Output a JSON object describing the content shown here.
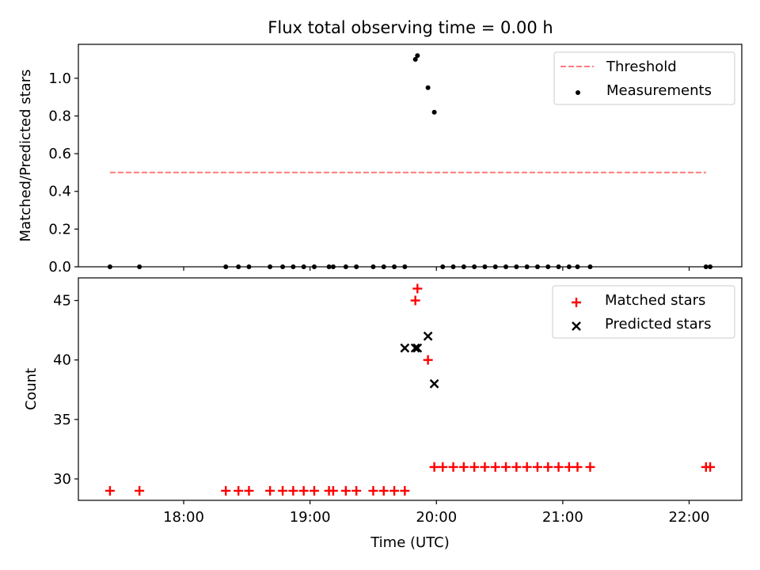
{
  "title": "Flux total observing time = 0.00 h",
  "colors": {
    "threshold": "#ff7b7b",
    "measurements": "#000000",
    "matched": "#ff0000",
    "predicted": "#000000",
    "axes": "#000000",
    "background": "#ffffff"
  },
  "chart_data": [
    {
      "type": "scatter",
      "ylabel": "Matched/Predicted stars",
      "xlabel": "",
      "xlim": [
        "17:10",
        "22:25"
      ],
      "ylim": [
        0,
        1.18
      ],
      "yticks": [
        0.0,
        0.2,
        0.4,
        0.6,
        0.8,
        1.0
      ],
      "ytick_labels": [
        "0.0",
        "0.2",
        "0.4",
        "0.6",
        "0.8",
        "1.0"
      ],
      "legend": {
        "placement": "top-right",
        "entries": [
          {
            "label": "Threshold",
            "marker": "dashed-line"
          },
          {
            "label": "Measurements",
            "marker": "dot"
          }
        ]
      },
      "threshold_line": {
        "y": 0.5,
        "x_start": "17:25",
        "x_end": "22:08"
      },
      "series": [
        {
          "name": "Measurements",
          "x": [
            "17:25",
            "17:39",
            "18:20",
            "18:26",
            "18:31",
            "18:41",
            "18:47",
            "18:52",
            "18:57",
            "19:02",
            "19:09",
            "19:11",
            "19:17",
            "19:22",
            "19:30",
            "19:35",
            "19:40",
            "19:45",
            "19:50",
            "19:51",
            "19:56",
            "19:59",
            "20:03",
            "20:08",
            "20:13",
            "20:18",
            "20:23",
            "20:28",
            "20:33",
            "20:38",
            "20:43",
            "20:48",
            "20:53",
            "20:58",
            "21:03",
            "21:07",
            "21:13",
            "22:08",
            "22:10"
          ],
          "y": [
            0,
            0,
            0,
            0,
            0,
            0,
            0,
            0,
            0,
            0,
            0,
            0,
            0,
            0,
            0,
            0,
            0,
            0,
            1.1,
            1.12,
            0.95,
            0.82,
            0,
            0,
            0,
            0,
            0,
            0,
            0,
            0,
            0,
            0,
            0,
            0,
            0,
            0,
            0,
            0,
            0
          ]
        }
      ]
    },
    {
      "type": "scatter",
      "ylabel": "Count",
      "xlabel": "Time (UTC)",
      "xlim": [
        "17:10",
        "22:25"
      ],
      "ylim": [
        28.2,
        46.9
      ],
      "yticks": [
        30,
        35,
        40,
        45
      ],
      "ytick_labels": [
        "30",
        "35",
        "40",
        "45"
      ],
      "xticks": [
        "18:00",
        "19:00",
        "20:00",
        "21:00",
        "22:00"
      ],
      "xtick_labels": [
        "18:00",
        "19:00",
        "20:00",
        "21:00",
        "22:00"
      ],
      "legend": {
        "placement": "top-right",
        "entries": [
          {
            "label": "Matched stars",
            "marker": "plus"
          },
          {
            "label": "Predicted stars",
            "marker": "x"
          }
        ]
      },
      "series": [
        {
          "name": "Matched stars",
          "x": [
            "17:25",
            "17:39",
            "18:20",
            "18:26",
            "18:31",
            "18:41",
            "18:47",
            "18:52",
            "18:57",
            "19:02",
            "19:09",
            "19:11",
            "19:17",
            "19:22",
            "19:30",
            "19:35",
            "19:40",
            "19:45",
            "19:50",
            "19:51",
            "19:56",
            "19:59",
            "20:03",
            "20:08",
            "20:13",
            "20:18",
            "20:23",
            "20:28",
            "20:33",
            "20:38",
            "20:43",
            "20:48",
            "20:53",
            "20:58",
            "21:03",
            "21:07",
            "21:13",
            "22:08",
            "22:10"
          ],
          "y": [
            29,
            29,
            29,
            29,
            29,
            29,
            29,
            29,
            29,
            29,
            29,
            29,
            29,
            29,
            29,
            29,
            29,
            29,
            45,
            46,
            40,
            31,
            31,
            31,
            31,
            31,
            31,
            31,
            31,
            31,
            31,
            31,
            31,
            31,
            31,
            31,
            31,
            31,
            31
          ]
        },
        {
          "name": "Predicted stars",
          "x": [
            "19:45",
            "19:50",
            "19:51",
            "19:56",
            "19:59"
          ],
          "y": [
            41,
            41,
            41,
            42,
            38
          ]
        }
      ]
    }
  ]
}
